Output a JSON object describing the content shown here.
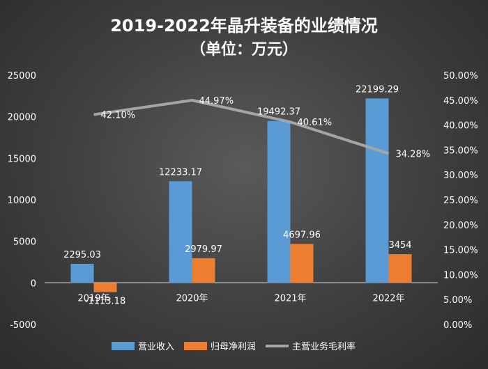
{
  "chart_data": {
    "type": "bar",
    "title": "2019-2022年晶升装备的业绩情况",
    "subtitle": "（单位：万元）",
    "categories": [
      "2019年",
      "2020年",
      "2021年",
      "2022年"
    ],
    "series": [
      {
        "name": "营业收入",
        "type": "bar",
        "axis": "left",
        "color": "#5b9bd5",
        "values": [
          2295.03,
          12233.17,
          19492.37,
          22199.29
        ],
        "labels": [
          "2295.03",
          "12233.17",
          "19492.37",
          "22199.29"
        ]
      },
      {
        "name": "归母净利润",
        "type": "bar",
        "axis": "left",
        "color": "#ed7d31",
        "values": [
          -1113.18,
          2979.97,
          4697.96,
          3454
        ],
        "labels": [
          "-1113.18",
          "2979.97",
          "4697.96",
          "3454"
        ]
      },
      {
        "name": "主营业务毛利率",
        "type": "line",
        "axis": "right",
        "color": "#a5a5a5",
        "values": [
          42.1,
          44.97,
          40.61,
          34.28
        ],
        "labels": [
          "42.10%",
          "44.97%",
          "40.61%",
          "34.28%"
        ]
      }
    ],
    "y_left": {
      "min": -5000,
      "max": 25000,
      "ticks": [
        "-5000",
        "0",
        "5000",
        "10000",
        "15000",
        "20000",
        "25000"
      ]
    },
    "y_right": {
      "min": 0,
      "max": 50,
      "unit": "%",
      "ticks": [
        "0.00%",
        "5.00%",
        "10.00%",
        "15.00%",
        "20.00%",
        "25.00%",
        "30.00%",
        "35.00%",
        "40.00%",
        "45.00%",
        "50.00%"
      ]
    },
    "grid": false,
    "legend": "bottom"
  }
}
